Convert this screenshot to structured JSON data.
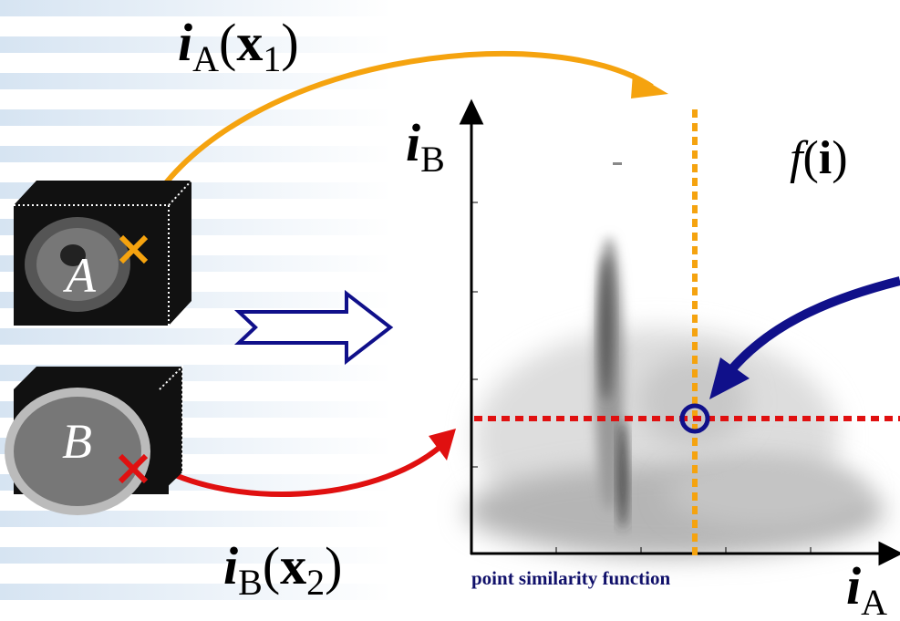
{
  "arrow_a_label": [
    "i",
    "A",
    "(",
    "x",
    "1",
    ")"
  ],
  "arrow_b_label": [
    "i",
    "B",
    "(",
    "x",
    "2",
    ")"
  ],
  "y_axis_label": [
    "i",
    "B"
  ],
  "x_axis_label": [
    "i",
    "A"
  ],
  "function_label": [
    "f",
    "(",
    "i",
    ")"
  ],
  "volume_a_label": "A",
  "volume_b_label": "B",
  "caption": "point similarity function"
}
